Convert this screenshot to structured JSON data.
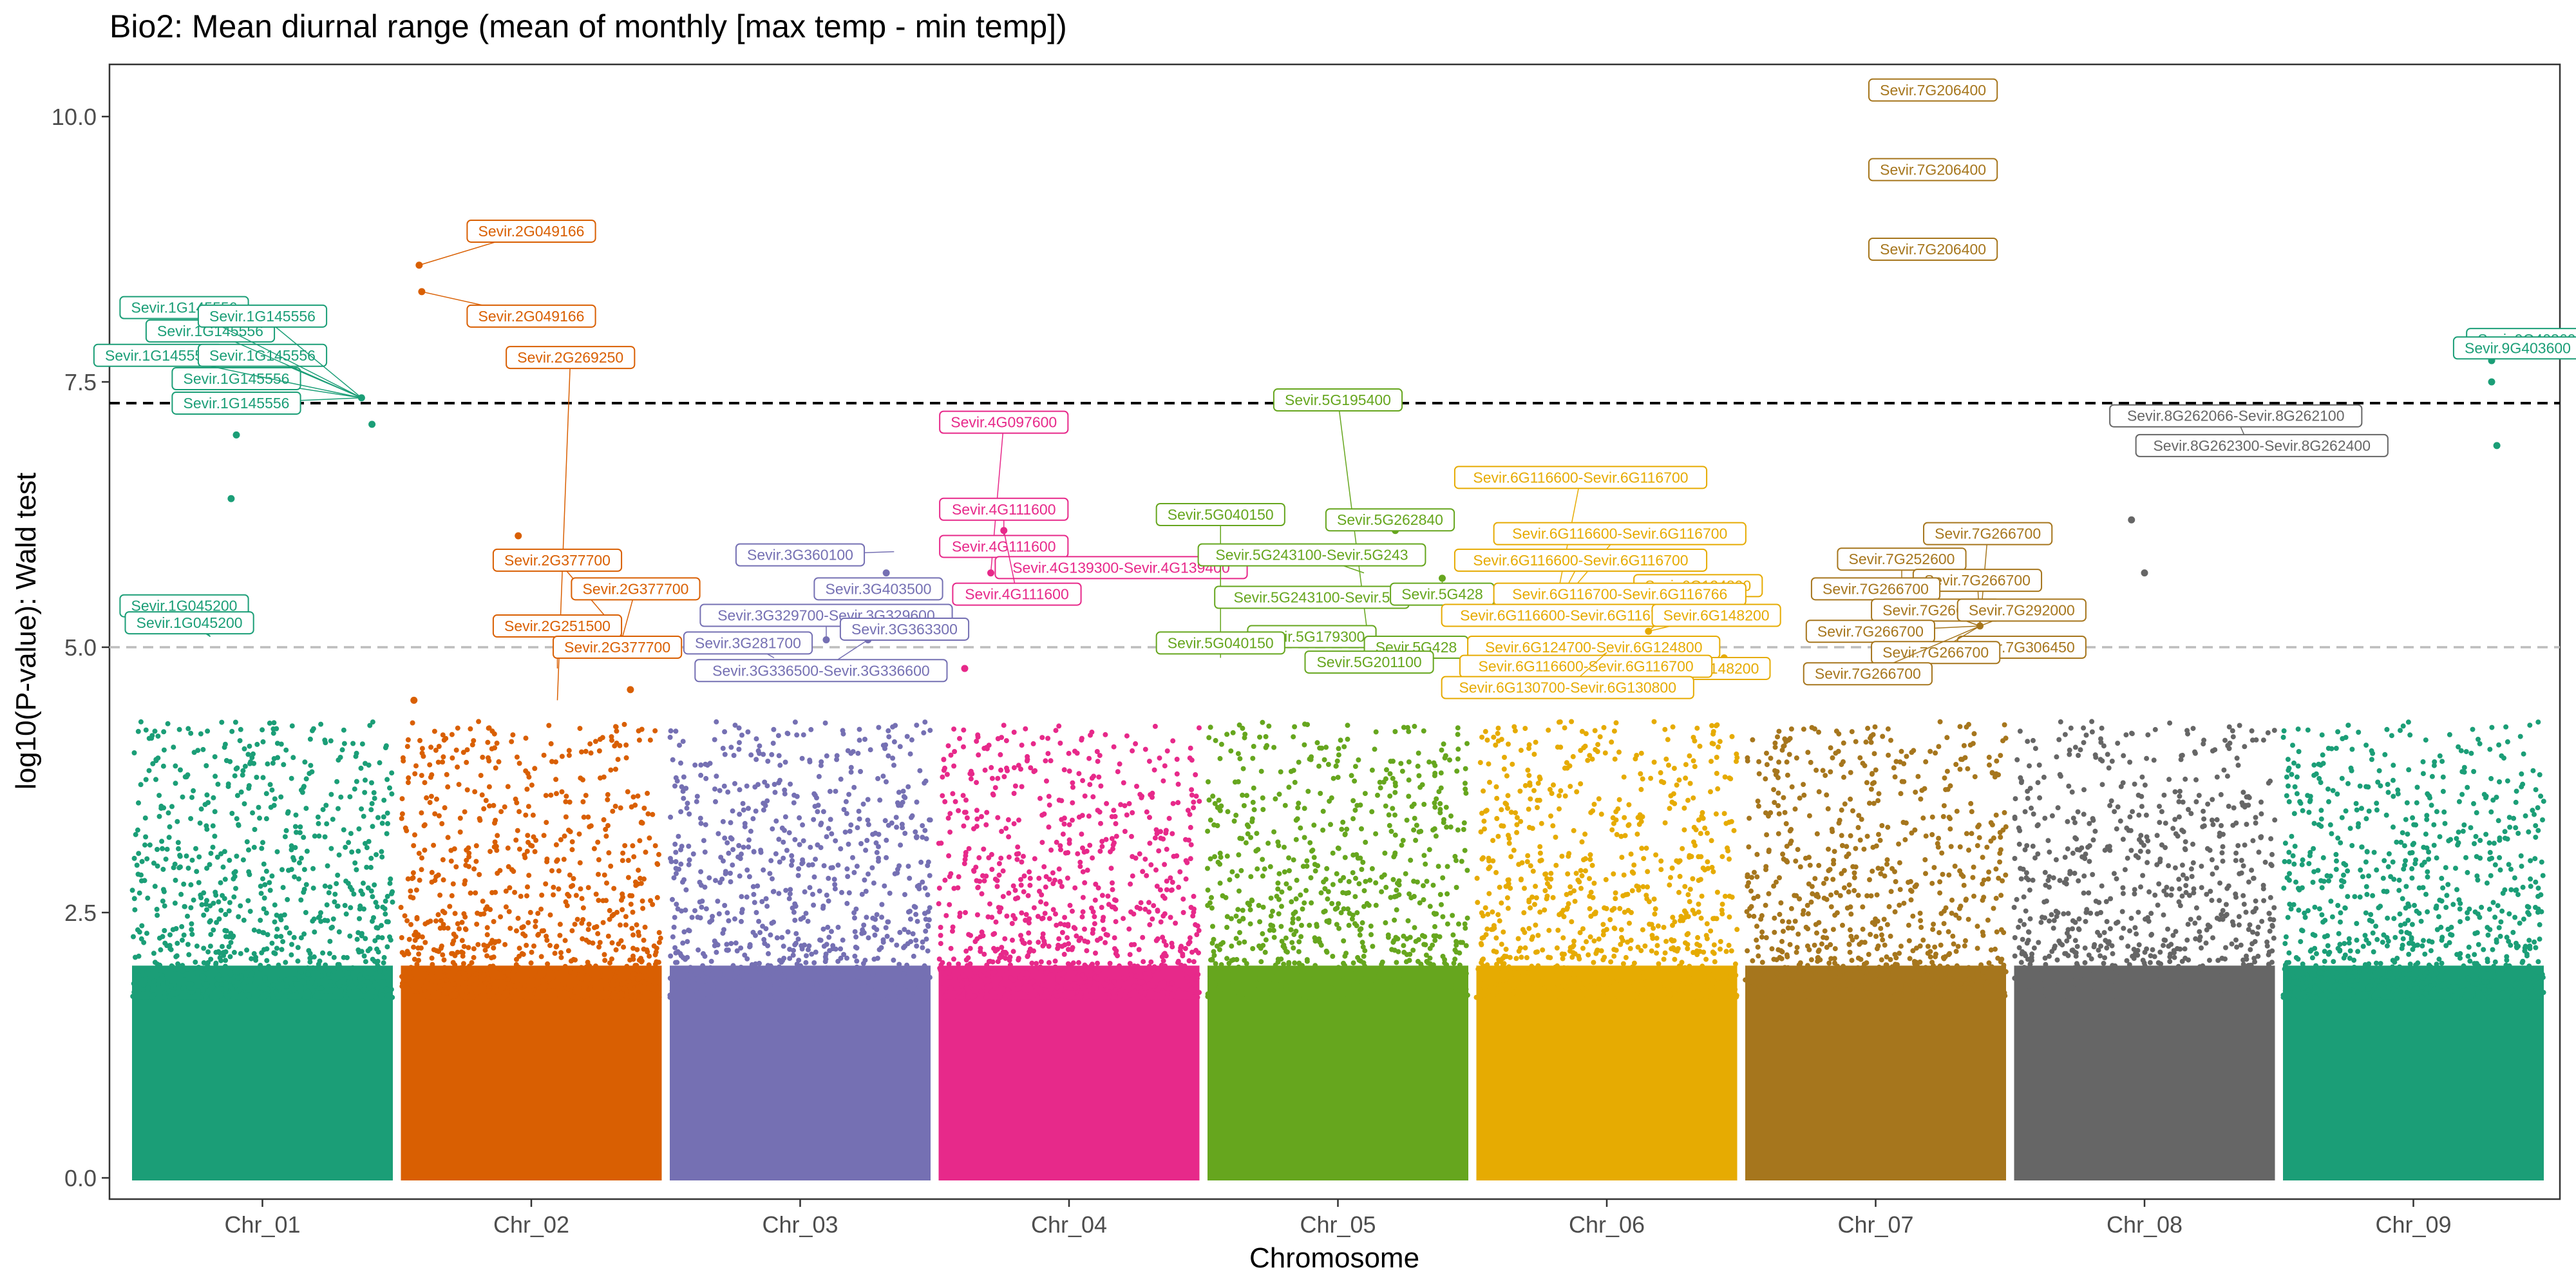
{
  "chart_data": {
    "type": "scatter",
    "subtype": "manhattan",
    "title": "Bio2: Mean diurnal range (mean of monthly [max temp - min temp])",
    "xlabel": "Chromosome",
    "ylabel": "log10(P-value): Wald test",
    "ylim": [
      0,
      10.5
    ],
    "y_ticks": [
      0.0,
      2.5,
      5.0,
      7.5,
      10.0
    ],
    "y_tick_labels": [
      "0.0",
      "2.5",
      "5.0",
      "7.5",
      "10.0"
    ],
    "grid": false,
    "legend": "none",
    "thresholds": [
      {
        "value": 7.3,
        "style": "dashed",
        "color": "#000000"
      },
      {
        "value": 5.0,
        "style": "dashed",
        "color": "#BDBDBD"
      }
    ],
    "categories": [
      "Chr_01",
      "Chr_02",
      "Chr_03",
      "Chr_04",
      "Chr_05",
      "Chr_06",
      "Chr_07",
      "Chr_08",
      "Chr_09"
    ],
    "series": [
      {
        "color": "#1B9E77",
        "top_hits": [
          [
            0.3,
            5.45
          ],
          [
            0.38,
            6.4
          ],
          [
            0.4,
            7.0
          ],
          [
            0.88,
            7.35
          ],
          [
            0.92,
            7.1
          ]
        ]
      },
      {
        "color": "#D95F02",
        "top_hits": [
          [
            0.05,
            4.5
          ],
          [
            0.45,
            6.05
          ],
          [
            0.07,
            8.6
          ],
          [
            0.08,
            8.35
          ],
          [
            0.88,
            4.6
          ]
        ]
      },
      {
        "color": "#7570B3",
        "top_hits": [
          [
            0.6,
            5.07
          ],
          [
            0.76,
            5.07
          ],
          [
            0.86,
            5.5
          ],
          [
            0.83,
            5.7
          ]
        ]
      },
      {
        "color": "#E7298A",
        "top_hits": [
          [
            0.25,
            6.1
          ],
          [
            0.3,
            5.8
          ],
          [
            0.2,
            5.7
          ],
          [
            0.1,
            4.8
          ]
        ]
      },
      {
        "color": "#66A61E",
        "top_hits": [
          [
            0.72,
            6.1
          ],
          [
            0.9,
            5.65
          ],
          [
            0.62,
            5.0
          ]
        ]
      },
      {
        "color": "#E6AB02",
        "top_hits": [
          [
            0.3,
            5.35
          ],
          [
            0.66,
            5.15
          ],
          [
            0.5,
            4.95
          ],
          [
            0.95,
            4.9
          ]
        ]
      },
      {
        "color": "#A6761D",
        "top_hits": [
          [
            0.68,
            8.7
          ],
          [
            0.7,
            9.5
          ],
          [
            0.72,
            10.2
          ],
          [
            0.9,
            5.2
          ],
          [
            0.6,
            5.0
          ]
        ]
      },
      {
        "color": "#666666",
        "top_hits": [
          [
            0.45,
            6.2
          ],
          [
            0.9,
            6.9
          ],
          [
            0.5,
            5.7
          ]
        ]
      },
      {
        "color": "#1B9E77",
        "top_hits": [
          [
            0.8,
            7.7
          ],
          [
            0.8,
            7.5
          ],
          [
            0.82,
            6.9
          ]
        ]
      }
    ],
    "annotations": [
      {
        "chr": 0,
        "text": "Sevir.1G145556",
        "point": [
          0.88,
          7.35
        ],
        "label": [
          0.4,
          7.3
        ]
      },
      {
        "chr": 0,
        "text": "Sevir.1G145556",
        "point": [
          0.88,
          7.35
        ],
        "label": [
          0.4,
          7.53
        ]
      },
      {
        "chr": 0,
        "text": "Sevir.1G145556",
        "point": [
          0.88,
          7.35
        ],
        "label": [
          0.1,
          7.75
        ]
      },
      {
        "chr": 0,
        "text": "Sevir.1G145556",
        "point": [
          0.88,
          7.35
        ],
        "label": [
          0.5,
          7.75
        ]
      },
      {
        "chr": 0,
        "text": "Sevir.1G145556",
        "point": [
          0.88,
          7.35
        ],
        "label": [
          0.3,
          7.98
        ]
      },
      {
        "chr": 0,
        "text": "Sevir.1G145556",
        "point": [
          0.88,
          7.35
        ],
        "label": [
          0.2,
          8.2
        ]
      },
      {
        "chr": 0,
        "text": "Sevir.1G145556",
        "point": [
          0.88,
          7.35
        ],
        "label": [
          0.5,
          8.12
        ]
      },
      {
        "chr": 0,
        "text": "Sevir.1G045200",
        "point": [
          0.3,
          5.1
        ],
        "label": [
          0.2,
          5.39
        ]
      },
      {
        "chr": 0,
        "text": "Sevir.1G045200",
        "point": [
          0.3,
          5.1
        ],
        "label": [
          0.22,
          5.23
        ]
      },
      {
        "chr": 1,
        "text": "Sevir.2G049166",
        "point": [
          0.07,
          8.6
        ],
        "label": [
          0.5,
          8.92
        ]
      },
      {
        "chr": 1,
        "text": "Sevir.2G049166",
        "point": [
          0.08,
          8.35
        ],
        "label": [
          0.5,
          8.12
        ]
      },
      {
        "chr": 1,
        "text": "Sevir.2G269250",
        "point": [
          0.6,
          4.5
        ],
        "label": [
          0.65,
          7.73
        ]
      },
      {
        "chr": 1,
        "text": "Sevir.2G377700",
        "point": [
          0.85,
          5.1
        ],
        "label": [
          0.6,
          5.82
        ]
      },
      {
        "chr": 1,
        "text": "Sevir.2G377700",
        "point": [
          0.85,
          5.1
        ],
        "label": [
          0.9,
          5.55
        ]
      },
      {
        "chr": 1,
        "text": "Sevir.2G251500",
        "point": [
          0.6,
          4.8
        ],
        "label": [
          0.6,
          5.2
        ]
      },
      {
        "chr": 1,
        "text": "Sevir.2G377700",
        "point": [
          0.85,
          5.1
        ],
        "label": [
          0.83,
          5.0
        ]
      },
      {
        "chr": 2,
        "text": "Sevir.3G360100",
        "point": [
          0.86,
          5.9
        ],
        "label": [
          0.5,
          5.87
        ]
      },
      {
        "chr": 2,
        "text": "Sevir.3G403500",
        "point": [
          0.86,
          5.5
        ],
        "label": [
          0.8,
          5.55
        ]
      },
      {
        "chr": 2,
        "text": "Sevir.3G329700-Sevir.3G329600",
        "point": [
          0.6,
          5.1
        ],
        "label": [
          0.6,
          5.3
        ]
      },
      {
        "chr": 2,
        "text": "Sevir.3G281700",
        "point": [
          0.4,
          4.9
        ],
        "label": [
          0.3,
          5.04
        ]
      },
      {
        "chr": 2,
        "text": "Sevir.3G363300",
        "point": [
          0.86,
          5.1
        ],
        "label": [
          0.9,
          5.17
        ]
      },
      {
        "chr": 2,
        "text": "Sevir.3G336500-Sevir.3G336600",
        "point": [
          0.76,
          5.07
        ],
        "label": [
          0.58,
          4.78
        ]
      },
      {
        "chr": 3,
        "text": "Sevir.4G097600",
        "point": [
          0.2,
          5.7
        ],
        "label": [
          0.25,
          7.12
        ]
      },
      {
        "chr": 3,
        "text": "Sevir.4G111600",
        "point": [
          0.25,
          6.1
        ],
        "label": [
          0.25,
          6.3
        ]
      },
      {
        "chr": 3,
        "text": "Sevir.4G111600",
        "point": [
          0.25,
          6.1
        ],
        "label": [
          0.25,
          5.95
        ]
      },
      {
        "chr": 3,
        "text": "Sevir.4G139300-Sevir.4G139400",
        "point": [
          0.3,
          5.8
        ],
        "label": [
          0.7,
          5.75
        ]
      },
      {
        "chr": 3,
        "text": "Sevir.4G111600",
        "point": [
          0.25,
          6.1
        ],
        "label": [
          0.3,
          5.5
        ]
      },
      {
        "chr": 4,
        "text": "Sevir.5G195400",
        "point": [
          0.62,
          5.0
        ],
        "label": [
          0.5,
          7.33
        ]
      },
      {
        "chr": 4,
        "text": "Sevir.5G040150",
        "point": [
          0.05,
          4.9
        ],
        "label": [
          0.05,
          6.25
        ]
      },
      {
        "chr": 4,
        "text": "Sevir.5G262840",
        "point": [
          0.72,
          6.1
        ],
        "label": [
          0.7,
          6.2
        ]
      },
      {
        "chr": 4,
        "text": "Sevir.5G243100-Sevir.5G243",
        "point": [
          0.6,
          5.7
        ],
        "label": [
          0.4,
          5.87
        ]
      },
      {
        "chr": 4,
        "text": "Sevir.5G243100-Sevir.5",
        "point": [
          0.6,
          5.5
        ],
        "label": [
          0.4,
          5.47
        ]
      },
      {
        "chr": 4,
        "text": "Sevir.5G428",
        "point": [
          0.9,
          5.65
        ],
        "label": [
          0.9,
          5.5
        ]
      },
      {
        "chr": 4,
        "text": "Sevir.5G179300",
        "point": [
          0.4,
          5.0
        ],
        "label": [
          0.4,
          5.1
        ]
      },
      {
        "chr": 4,
        "text": "Sevir.5G040150",
        "point": [
          0.05,
          4.9
        ],
        "label": [
          0.05,
          5.04
        ]
      },
      {
        "chr": 4,
        "text": "Sevir.5G428",
        "point": [
          0.9,
          5.0
        ],
        "label": [
          0.8,
          5.0
        ]
      },
      {
        "chr": 4,
        "text": "Sevir.5G201100",
        "point": [
          0.62,
          4.8
        ],
        "label": [
          0.62,
          4.86
        ]
      },
      {
        "chr": 5,
        "text": "Sevir.6G116600-Sevir.6G116700",
        "point": [
          0.3,
          5.35
        ],
        "label": [
          0.4,
          6.6
        ]
      },
      {
        "chr": 5,
        "text": "Sevir.6G116600-Sevir.6G116700",
        "point": [
          0.3,
          5.35
        ],
        "label": [
          0.55,
          6.07
        ]
      },
      {
        "chr": 5,
        "text": "Sevir.6G116600-Sevir.6G116700",
        "point": [
          0.3,
          5.35
        ],
        "label": [
          0.4,
          5.82
        ]
      },
      {
        "chr": 5,
        "text": "Sevir.6G124800",
        "point": [
          0.66,
          5.15
        ],
        "label": [
          0.85,
          5.58
        ]
      },
      {
        "chr": 5,
        "text": "Sevir.6G116700-Sevir.6G116766",
        "point": [
          0.5,
          5.2
        ],
        "label": [
          0.55,
          5.5
        ]
      },
      {
        "chr": 5,
        "text": "Sevir.6G116600-Sevir.6G116700",
        "point": [
          0.3,
          5.35
        ],
        "label": [
          0.35,
          5.3
        ]
      },
      {
        "chr": 5,
        "text": "Sevir.6G148200",
        "point": [
          0.66,
          5.15
        ],
        "label": [
          0.92,
          5.3
        ]
      },
      {
        "chr": 5,
        "text": "Sevir.6G124700-Sevir.6G124800",
        "point": [
          0.5,
          4.95
        ],
        "label": [
          0.45,
          5.0
        ]
      },
      {
        "chr": 5,
        "text": "Sevir.6G148200",
        "point": [
          0.95,
          4.9
        ],
        "label": [
          0.88,
          4.8
        ]
      },
      {
        "chr": 5,
        "text": "Sevir.6G116600-Sevir.6G116700",
        "point": [
          0.5,
          4.95
        ],
        "label": [
          0.42,
          4.82
        ]
      },
      {
        "chr": 5,
        "text": "Sevir.6G130700-Sevir.6G130800",
        "point": [
          0.5,
          4.95
        ],
        "label": [
          0.35,
          4.62
        ]
      },
      {
        "chr": 6,
        "text": "Sevir.7G206400",
        "point": [
          0.72,
          10.2
        ],
        "label": [
          0.72,
          10.25
        ]
      },
      {
        "chr": 6,
        "text": "Sevir.7G206400",
        "point": [
          0.7,
          9.5
        ],
        "label": [
          0.72,
          9.5
        ]
      },
      {
        "chr": 6,
        "text": "Sevir.7G206400",
        "point": [
          0.68,
          8.7
        ],
        "label": [
          0.72,
          8.75
        ]
      },
      {
        "chr": 6,
        "text": "Sevir.7G266700",
        "point": [
          0.9,
          5.2
        ],
        "label": [
          0.93,
          6.07
        ]
      },
      {
        "chr": 6,
        "text": "Sevir.7G252600",
        "point": [
          0.6,
          5.0
        ],
        "label": [
          0.6,
          5.83
        ]
      },
      {
        "chr": 6,
        "text": "Sevir.7G266700",
        "point": [
          0.9,
          5.2
        ],
        "label": [
          0.89,
          5.63
        ]
      },
      {
        "chr": 6,
        "text": "Sevir.7G266700",
        "point": [
          0.9,
          5.2
        ],
        "label": [
          0.5,
          5.55
        ]
      },
      {
        "chr": 6,
        "text": "Sevir.7G266700",
        "point": [
          0.9,
          5.2
        ],
        "label": [
          0.73,
          5.35
        ]
      },
      {
        "chr": 6,
        "text": "Sevir.7G292000",
        "point": [
          0.9,
          5.2
        ],
        "label": [
          1.06,
          5.35
        ]
      },
      {
        "chr": 6,
        "text": "Sevir.7G266700",
        "point": [
          0.9,
          5.2
        ],
        "label": [
          0.48,
          5.15
        ]
      },
      {
        "chr": 6,
        "text": "Sevir.7G306450",
        "point": [
          0.95,
          5.05
        ],
        "label": [
          1.06,
          5.0
        ]
      },
      {
        "chr": 6,
        "text": "Sevir.7G266700",
        "point": [
          0.9,
          5.2
        ],
        "label": [
          0.73,
          4.95
        ]
      },
      {
        "chr": 6,
        "text": "Sevir.7G266700",
        "point": [
          0.9,
          5.2
        ],
        "label": [
          0.47,
          4.75
        ]
      },
      {
        "chr": 7,
        "text": "Sevir.8G262066-Sevir.8G262100",
        "point": [
          0.9,
          6.9
        ],
        "label": [
          0.85,
          7.18
        ]
      },
      {
        "chr": 7,
        "text": "Sevir.8G262300-Sevir.8G262400",
        "point": [
          0.9,
          6.9
        ],
        "label": [
          0.95,
          6.9
        ]
      },
      {
        "chr": 8,
        "text": "Sevir.9G403600",
        "point": [
          0.8,
          7.7
        ],
        "label": [
          0.95,
          7.9
        ]
      },
      {
        "chr": 8,
        "text": "Sevir.9G403600",
        "point": [
          0.8,
          7.7
        ],
        "label": [
          0.9,
          7.82
        ]
      }
    ]
  }
}
